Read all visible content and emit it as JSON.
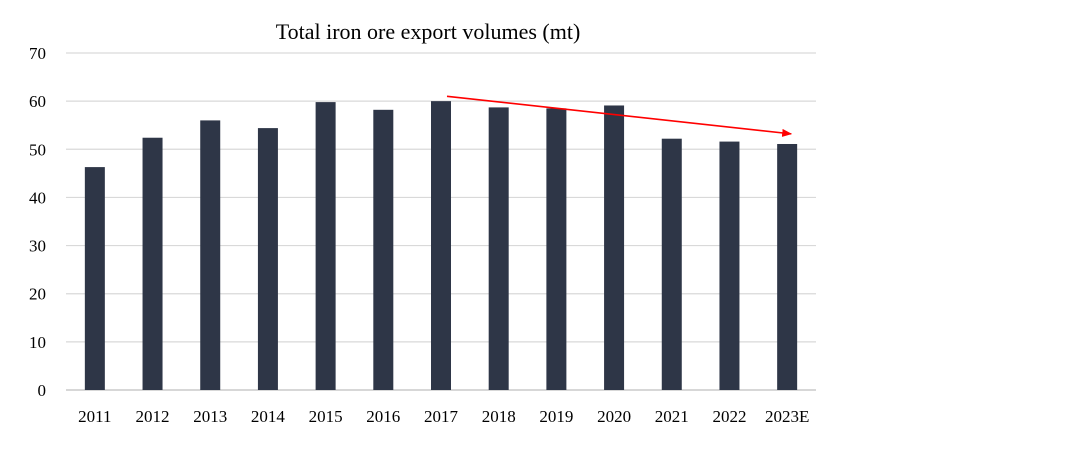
{
  "chart_data": {
    "type": "bar",
    "title": "Total iron ore export volumes (mt)",
    "categories": [
      "2011",
      "2012",
      "2013",
      "2014",
      "2015",
      "2016",
      "2017",
      "2018",
      "2019",
      "2020",
      "2021",
      "2022",
      "2023E"
    ],
    "values": [
      46.3,
      52.4,
      56.0,
      54.4,
      59.8,
      58.2,
      60.0,
      58.7,
      58.5,
      59.1,
      52.2,
      51.6,
      51.1
    ],
    "ylim": [
      0,
      70
    ],
    "yticks": [
      0,
      10,
      20,
      30,
      40,
      50,
      60,
      70
    ],
    "grid": true,
    "legend": "none",
    "bar_color": "#2e3647",
    "annotations": [
      {
        "type": "arrow",
        "color": "#ff0000",
        "from": {
          "x": "2017",
          "y": 61
        },
        "to": {
          "x": "2023E",
          "y": 53.2
        }
      }
    ]
  }
}
